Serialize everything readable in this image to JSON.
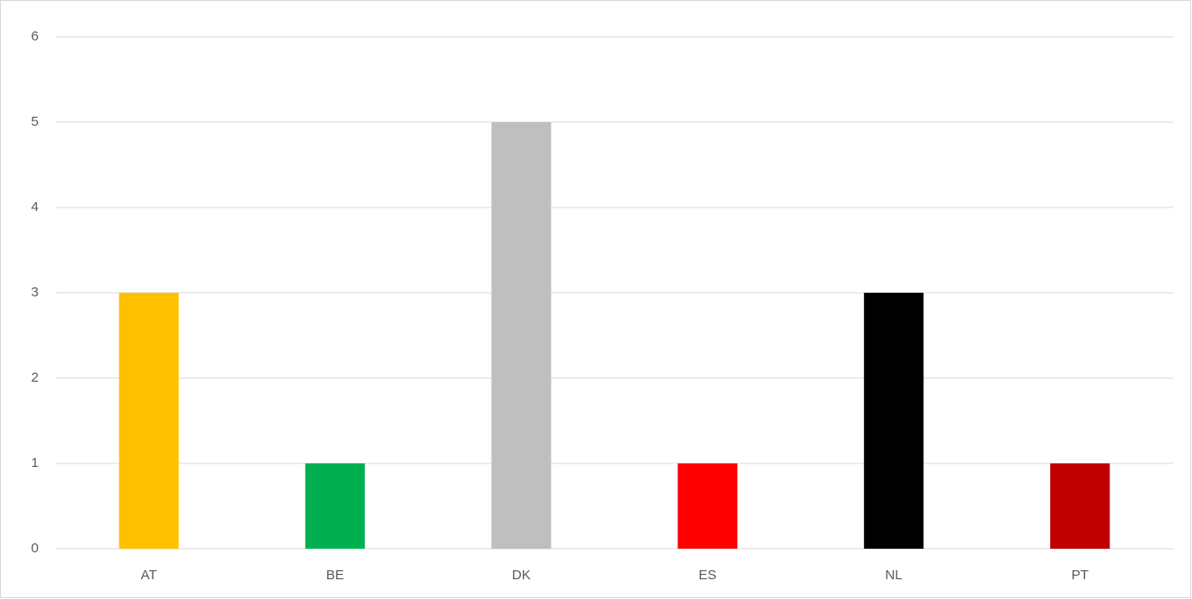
{
  "chart_data": {
    "type": "bar",
    "categories": [
      "AT",
      "BE",
      "DK",
      "ES",
      "NL",
      "PT"
    ],
    "values": [
      3,
      1,
      5,
      1,
      3,
      1
    ],
    "colors": [
      "#ffc000",
      "#00b050",
      "#bfbfbf",
      "#ff0000",
      "#000000",
      "#c00000"
    ],
    "ylim": [
      0,
      6
    ],
    "yticks": [
      0,
      1,
      2,
      3,
      4,
      5,
      6
    ],
    "grid": true
  }
}
